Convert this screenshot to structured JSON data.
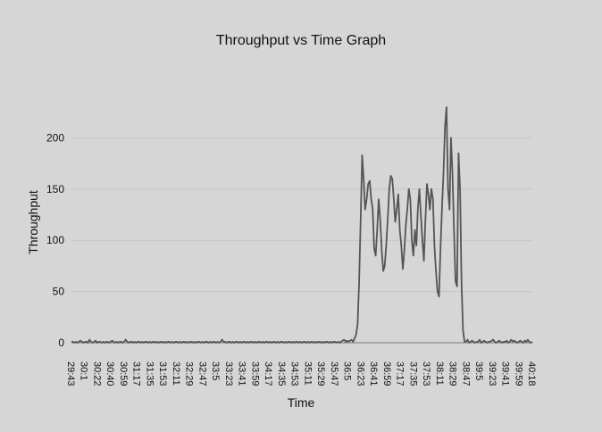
{
  "chart_data": {
    "type": "line",
    "title": "Throughput vs Time Graph",
    "xlabel": "Time",
    "ylabel": "Throughput",
    "ylim": [
      0,
      230
    ],
    "yticks": [
      0,
      50,
      100,
      150,
      200
    ],
    "grid": true,
    "legend": "none",
    "x_tick_labels": [
      "29:43",
      "30:1",
      "30:22",
      "30:40",
      "30:59",
      "31:17",
      "31:35",
      "31:53",
      "32:11",
      "32:29",
      "32:47",
      "33:5",
      "33:23",
      "33:41",
      "33:59",
      "34:17",
      "34:35",
      "34:53",
      "35:11",
      "35:29",
      "35:47",
      "36:5",
      "36:23",
      "36:41",
      "36:59",
      "37:17",
      "37:35",
      "37:53",
      "38:11",
      "38:29",
      "38:47",
      "39:5",
      "39:23",
      "39:41",
      "39:59",
      "40:18"
    ],
    "colors": {
      "line": "#555555",
      "grid": "#c6c6c6",
      "axis": "#777777"
    },
    "series": [
      {
        "values": [
          1,
          1,
          0,
          1,
          0,
          1,
          2,
          1,
          0,
          1,
          1,
          0,
          3,
          1,
          0,
          1,
          2,
          0,
          1,
          1,
          0,
          1,
          0,
          1,
          1,
          0,
          1,
          2,
          1,
          0,
          1,
          0,
          1,
          1,
          0,
          1,
          3,
          1,
          0,
          1,
          1,
          0,
          1,
          0,
          1,
          1,
          0,
          1,
          0,
          1,
          1,
          0,
          1,
          0,
          1,
          1,
          0,
          1,
          0,
          1,
          1,
          0,
          1,
          0,
          1,
          1,
          0,
          1,
          0,
          1,
          1,
          0,
          1,
          0,
          1,
          1,
          0,
          1,
          0,
          1,
          1,
          0,
          1,
          0,
          1,
          1,
          0,
          1,
          0,
          1,
          1,
          0,
          1,
          0,
          1,
          1,
          0,
          1,
          0,
          1,
          3,
          1,
          1,
          0,
          1,
          1,
          0,
          1,
          0,
          1,
          1,
          0,
          1,
          0,
          1,
          1,
          0,
          1,
          0,
          1,
          1,
          0,
          1,
          0,
          1,
          1,
          0,
          1,
          0,
          1,
          1,
          0,
          1,
          0,
          1,
          1,
          0,
          1,
          0,
          1,
          1,
          0,
          1,
          0,
          1,
          1,
          0,
          1,
          0,
          1,
          1,
          0,
          1,
          0,
          1,
          1,
          0,
          1,
          0,
          1,
          1,
          0,
          1,
          0,
          1,
          1,
          0,
          1,
          0,
          1,
          1,
          0,
          1,
          0,
          1,
          1,
          0,
          1,
          0,
          1,
          2,
          3,
          1,
          2,
          1,
          2,
          3,
          1,
          4,
          8,
          18,
          60,
          120,
          183,
          160,
          130,
          140,
          155,
          158,
          140,
          130,
          92,
          85,
          110,
          140,
          120,
          90,
          70,
          75,
          95,
          120,
          150,
          163,
          160,
          140,
          118,
          130,
          145,
          110,
          95,
          72,
          90,
          115,
          130,
          150,
          140,
          100,
          85,
          110,
          95,
          130,
          150,
          125,
          100,
          80,
          120,
          155,
          145,
          130,
          150,
          140,
          95,
          70,
          50,
          45,
          90,
          130,
          165,
          210,
          230,
          150,
          130,
          200,
          165,
          110,
          60,
          55,
          185,
          150,
          60,
          12,
          1,
          1,
          3,
          0,
          1,
          2,
          1,
          0,
          1,
          1,
          3,
          0,
          1,
          2,
          1,
          0,
          1,
          1,
          2,
          3,
          1,
          0,
          1,
          2,
          1,
          0,
          1,
          1,
          2,
          0,
          1,
          3,
          1,
          2,
          1,
          0,
          1,
          2,
          1,
          0,
          2,
          1,
          3,
          1,
          0,
          1
        ]
      }
    ]
  }
}
